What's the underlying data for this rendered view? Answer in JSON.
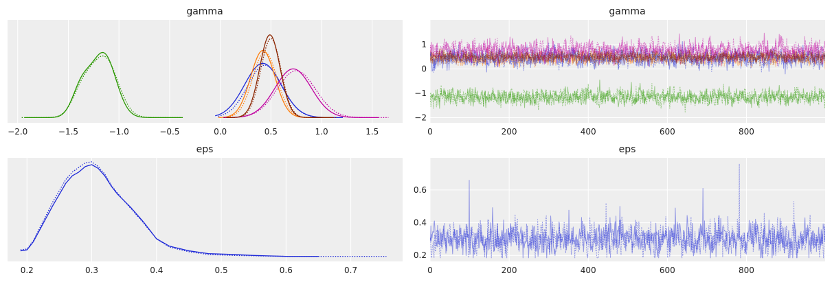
{
  "chart_data": [
    {
      "id": "gamma-kde",
      "type": "line",
      "title": "gamma",
      "xlabel": "",
      "ylabel": "",
      "xlim": [
        -2.1,
        1.8
      ],
      "ylim": [
        0,
        1.0
      ],
      "xticks": [
        -2.0,
        -1.5,
        -1.0,
        -0.5,
        0.0,
        0.5,
        1.0,
        1.5
      ],
      "xticklabels": [
        "−2.0",
        "−1.5",
        "−1.0",
        "−0.5",
        "0.0",
        "0.5",
        "1.0",
        "1.5"
      ],
      "yticks": [],
      "grid": true,
      "series": [
        {
          "color": "#2a9800",
          "style": "solid",
          "mu": -1.15,
          "sigma": 0.12,
          "peak": 0.69,
          "shoulder": {
            "mu": -1.37,
            "sigma": 0.09,
            "peak": 0.32
          },
          "range": [
            -1.93,
            -0.38
          ]
        },
        {
          "color": "#2a9800",
          "style": "dotted",
          "mu": -1.14,
          "sigma": 0.13,
          "peak": 0.64,
          "shoulder": {
            "mu": -1.36,
            "sigma": 0.1,
            "peak": 0.28
          },
          "range": [
            -1.96,
            -0.36
          ]
        },
        {
          "color": "#1f2ad8",
          "style": "solid",
          "mu": 0.42,
          "sigma": 0.18,
          "peak": 0.59,
          "range": [
            -0.05,
            1.21
          ]
        },
        {
          "color": "#1f2ad8",
          "style": "dotted",
          "mu": 0.44,
          "sigma": 0.17,
          "peak": 0.57,
          "range": [
            -0.02,
            1.17
          ]
        },
        {
          "color": "#ff7f0e",
          "style": "solid",
          "mu": 0.42,
          "sigma": 0.12,
          "peak": 0.73,
          "range": [
            -0.02,
            1.08
          ]
        },
        {
          "color": "#ff7f0e",
          "style": "dotted",
          "mu": 0.44,
          "sigma": 0.12,
          "peak": 0.71,
          "range": [
            0.0,
            1.1
          ]
        },
        {
          "color": "#c000a0",
          "style": "solid",
          "mu": 0.72,
          "sigma": 0.18,
          "peak": 0.53,
          "range": [
            0.03,
            1.56
          ]
        },
        {
          "color": "#c000a0",
          "style": "dotted",
          "mu": 0.75,
          "sigma": 0.19,
          "peak": 0.51,
          "range": [
            0.05,
            1.66
          ]
        },
        {
          "color": "#8b2500",
          "style": "solid",
          "mu": 0.49,
          "sigma": 0.1,
          "peak": 0.9,
          "range": [
            0.06,
            1.12
          ]
        },
        {
          "color": "#8b2500",
          "style": "dotted",
          "mu": 0.5,
          "sigma": 0.1,
          "peak": 0.86,
          "range": [
            0.04,
            1.15
          ]
        }
      ]
    },
    {
      "id": "gamma-trace",
      "type": "line",
      "title": "gamma",
      "xlabel": "",
      "ylabel": "",
      "xlim": [
        0,
        999
      ],
      "ylim": [
        -2.1,
        1.9
      ],
      "xticks": [
        0,
        200,
        400,
        600,
        800
      ],
      "xticklabels": [
        "0",
        "200",
        "400",
        "600",
        "800"
      ],
      "yticks": [
        -2,
        -1,
        0,
        1
      ],
      "yticklabels": [
        "−2",
        "−1",
        "0",
        "1"
      ],
      "grid": true,
      "draws": 1000,
      "series": [
        {
          "color": "#2a9800",
          "style": "solid",
          "mean": -1.15,
          "sd": 0.16,
          "seed": 11
        },
        {
          "color": "#2a9800",
          "style": "dotted",
          "mean": -1.15,
          "sd": 0.17,
          "seed": 12
        },
        {
          "color": "#ff7f0e",
          "style": "solid",
          "mean": 0.43,
          "sd": 0.13,
          "seed": 21
        },
        {
          "color": "#ff7f0e",
          "style": "dotted",
          "mean": 0.45,
          "sd": 0.13,
          "seed": 22
        },
        {
          "color": "#1f2ad8",
          "style": "solid",
          "mean": 0.44,
          "sd": 0.18,
          "seed": 31
        },
        {
          "color": "#1f2ad8",
          "style": "dotted",
          "mean": 0.45,
          "sd": 0.18,
          "seed": 32
        },
        {
          "color": "#c000a0",
          "style": "solid",
          "mean": 0.73,
          "sd": 0.19,
          "seed": 41
        },
        {
          "color": "#c000a0",
          "style": "dotted",
          "mean": 0.75,
          "sd": 0.2,
          "seed": 42
        },
        {
          "color": "#8b2500",
          "style": "solid",
          "mean": 0.49,
          "sd": 0.11,
          "seed": 51
        },
        {
          "color": "#8b2500",
          "style": "dotted",
          "mean": 0.5,
          "sd": 0.11,
          "seed": 52
        }
      ]
    },
    {
      "id": "eps-kde",
      "type": "line",
      "title": "eps",
      "xlabel": "",
      "ylabel": "",
      "xlim": [
        0.17,
        0.78
      ],
      "ylim": [
        0,
        1.0
      ],
      "xticks": [
        0.2,
        0.3,
        0.4,
        0.5,
        0.6,
        0.7
      ],
      "xticklabels": [
        "0.2",
        "0.3",
        "0.4",
        "0.5",
        "0.6",
        "0.7"
      ],
      "yticks": [],
      "grid": true,
      "series": [
        {
          "color": "#1f2ad8",
          "style": "solid",
          "points": [
            [
              0.19,
              0.07
            ],
            [
              0.2,
              0.08
            ],
            [
              0.21,
              0.17
            ],
            [
              0.22,
              0.3
            ],
            [
              0.24,
              0.56
            ],
            [
              0.26,
              0.8
            ],
            [
              0.27,
              0.88
            ],
            [
              0.28,
              0.92
            ],
            [
              0.29,
              0.98
            ],
            [
              0.3,
              1.0
            ],
            [
              0.31,
              0.96
            ],
            [
              0.32,
              0.88
            ],
            [
              0.33,
              0.77
            ],
            [
              0.34,
              0.68
            ],
            [
              0.36,
              0.54
            ],
            [
              0.38,
              0.38
            ],
            [
              0.4,
              0.2
            ],
            [
              0.42,
              0.12
            ],
            [
              0.45,
              0.07
            ],
            [
              0.48,
              0.04
            ],
            [
              0.52,
              0.03
            ],
            [
              0.55,
              0.02
            ],
            [
              0.6,
              0.01
            ],
            [
              0.65,
              0.01
            ]
          ]
        },
        {
          "color": "#1f2ad8",
          "style": "dotted",
          "points": [
            [
              0.19,
              0.08
            ],
            [
              0.2,
              0.09
            ],
            [
              0.21,
              0.18
            ],
            [
              0.22,
              0.32
            ],
            [
              0.24,
              0.6
            ],
            [
              0.26,
              0.84
            ],
            [
              0.27,
              0.92
            ],
            [
              0.28,
              0.97
            ],
            [
              0.29,
              1.02
            ],
            [
              0.3,
              1.03
            ],
            [
              0.31,
              0.98
            ],
            [
              0.32,
              0.9
            ],
            [
              0.33,
              0.78
            ],
            [
              0.34,
              0.69
            ],
            [
              0.36,
              0.53
            ],
            [
              0.38,
              0.37
            ],
            [
              0.4,
              0.2
            ],
            [
              0.42,
              0.11
            ],
            [
              0.45,
              0.06
            ],
            [
              0.48,
              0.03
            ],
            [
              0.52,
              0.02
            ],
            [
              0.6,
              0.01
            ],
            [
              0.7,
              0.01
            ],
            [
              0.755,
              0.01
            ]
          ]
        }
      ]
    },
    {
      "id": "eps-trace",
      "type": "line",
      "title": "eps",
      "xlabel": "",
      "ylabel": "",
      "xlim": [
        0,
        999
      ],
      "ylim": [
        0.18,
        0.78
      ],
      "xticks": [
        0,
        200,
        400,
        600,
        800
      ],
      "xticklabels": [
        "0",
        "200",
        "400",
        "600",
        "800"
      ],
      "yticks": [
        0.2,
        0.4,
        0.6
      ],
      "yticklabels": [
        "0.2",
        "0.4",
        "0.6"
      ],
      "grid": true,
      "draws": 1000,
      "series": [
        {
          "color": "#1f2ad8",
          "style": "solid",
          "mean": 0.3,
          "sd": 0.05,
          "seed": 61,
          "spikes": [
            [
              99,
              0.66
            ],
            [
              690,
              0.61
            ],
            [
              620,
              0.49
            ],
            [
              480,
              0.5
            ]
          ]
        },
        {
          "color": "#1f2ad8",
          "style": "dotted",
          "mean": 0.3,
          "sd": 0.05,
          "seed": 62,
          "spikes": [
            [
              782,
              0.76
            ],
            [
              920,
              0.53
            ],
            [
              445,
              0.52
            ]
          ]
        }
      ]
    }
  ]
}
